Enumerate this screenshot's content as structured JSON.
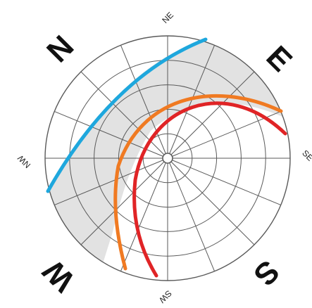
{
  "diagram": {
    "type": "sun-path-diagram",
    "compass": {
      "cardinals": [
        {
          "key": "N",
          "label": "N"
        },
        {
          "key": "E",
          "label": "E"
        },
        {
          "key": "W",
          "label": "W"
        },
        {
          "key": "S",
          "label": "S"
        }
      ],
      "intercardinals": [
        {
          "key": "NE",
          "label": "NE"
        },
        {
          "key": "NW",
          "label": "NW"
        },
        {
          "key": "SE",
          "label": "SE"
        },
        {
          "key": "SW",
          "label": "SW"
        }
      ]
    },
    "altitude_rings": 5,
    "radial_lines": 16,
    "paths": [
      {
        "key": "blue",
        "color": "#1ea7dd"
      },
      {
        "key": "orange",
        "color": "#f07a22"
      },
      {
        "key": "red",
        "color": "#e02426"
      }
    ],
    "colors": {
      "daylight_fill": "#e2e2e2",
      "grid_line": "#5a5a5a",
      "background": "#ffffff"
    }
  }
}
